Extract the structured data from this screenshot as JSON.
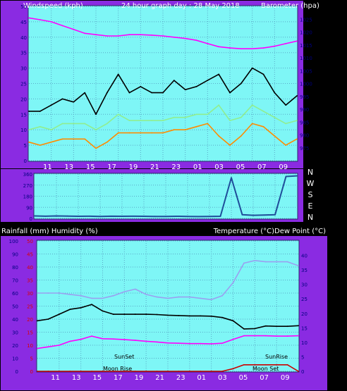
{
  "colors": {
    "page_bg": "#000000",
    "side_bg": "#8a2be2",
    "plot_bg": "#7ef6f6",
    "grid": "#5aaac8",
    "axis_text": "#ffffff",
    "tick_text": "#000080",
    "red_tick_text": "#d80000"
  },
  "top_chart": {
    "header_left": "Windspeed (kph)",
    "header_center": "24 hour graph day : 28 May 2018",
    "header_right": "Barometer (hpa)"
  },
  "direction_chart": {
    "compass_labels": [
      "N",
      "W",
      "S",
      "E",
      "N"
    ]
  },
  "bottom_chart": {
    "header_left": "Rainfall (mm)  Humidity (%)",
    "header_right": "Temperature (°C)Dew Point (°C)",
    "annotations": {
      "sunset": "SunSet",
      "sunrise": "SunRise",
      "moonrise": "Moon Rise",
      "moonset": "Moon Set"
    }
  },
  "chart_data": [
    {
      "type": "line",
      "title": "24 hour graph day : 28 May 2018",
      "xlabel": "",
      "ylabel": "Windspeed (kph)",
      "y2label": "Barometer (hpa)",
      "x_ticks": [
        "11",
        "13",
        "15",
        "17",
        "19",
        "21",
        "23",
        "01",
        "03",
        "05",
        "07",
        "09"
      ],
      "x": [
        0,
        1,
        2,
        3,
        4,
        5,
        6,
        7,
        8,
        9,
        10,
        11,
        12,
        13,
        14,
        15,
        16,
        17,
        18,
        19,
        20,
        21,
        22,
        23,
        24
      ],
      "ylim": [
        0,
        50
      ],
      "y_ticks": [
        "0",
        "5",
        "10",
        "15",
        "20",
        "25",
        "30",
        "35",
        "40",
        "45",
        "50"
      ],
      "y2lim": [
        970,
        1030
      ],
      "y2_ticks": [
        "975",
        "980",
        "985",
        "990",
        "995",
        "1000",
        "1005",
        "1010",
        "1015",
        "1020",
        "1025"
      ],
      "grid": true,
      "series": [
        {
          "values": [
            16,
            16,
            18,
            20,
            19,
            22,
            15,
            22,
            28,
            22,
            24,
            22,
            22,
            26,
            23,
            24,
            26,
            28,
            22,
            25,
            30,
            28,
            22,
            18,
            21
          ],
          "color": "#000000"
        },
        {
          "values": [
            10,
            11,
            10,
            12,
            12,
            12,
            10,
            12,
            15,
            13,
            13,
            13,
            13,
            14,
            14,
            15,
            15,
            18,
            13,
            14,
            18,
            16,
            14,
            12,
            13
          ],
          "color": "#90ee90"
        },
        {
          "values": [
            6,
            5,
            6,
            7,
            7,
            7,
            4,
            6,
            9,
            9,
            9,
            9,
            9,
            10,
            10,
            11,
            12,
            8,
            5,
            8,
            12,
            11,
            8,
            5,
            7
          ],
          "color": "#ff8c00"
        },
        {
          "axis": "right",
          "values": [
            1025.5,
            1024.8,
            1024,
            1022.5,
            1021,
            1019.5,
            1019,
            1018.5,
            1018.5,
            1019,
            1019,
            1018.8,
            1018.5,
            1018,
            1017.5,
            1016.8,
            1015.5,
            1014.3,
            1013.8,
            1013.5,
            1013.5,
            1013.8,
            1014.5,
            1015.5,
            1016.5
          ],
          "color": "#ff00ff"
        }
      ]
    },
    {
      "type": "line",
      "title": "",
      "ylabel": "",
      "x_ticks": [],
      "x": [
        0,
        1,
        2,
        3,
        4,
        5,
        6,
        7,
        8,
        9,
        10,
        11,
        12,
        13,
        14,
        15,
        16,
        17,
        18,
        19,
        20,
        21,
        22,
        23,
        24
      ],
      "ylim": [
        0,
        360
      ],
      "y_ticks": [
        "0",
        "90",
        "180",
        "270",
        "360"
      ],
      "grid": true,
      "series": [
        {
          "values": [
            20,
            18,
            20,
            19,
            17,
            18,
            16,
            18,
            17,
            18,
            17,
            16,
            16,
            17,
            16,
            15,
            16,
            17,
            330,
            30,
            25,
            27,
            30,
            340,
            345
          ],
          "color": "#1f4e9a"
        }
      ]
    },
    {
      "type": "line",
      "title": "",
      "xlabel": "",
      "ylabel": "Rainfall (mm)  Humidity (%)",
      "y2label": "Temperature (°C)Dew Point (°C)",
      "x_ticks": [
        "11",
        "13",
        "15",
        "17",
        "19",
        "21",
        "23",
        "01",
        "03",
        "05",
        "07",
        "09"
      ],
      "x": [
        0,
        1,
        2,
        3,
        4,
        5,
        6,
        7,
        8,
        9,
        10,
        11,
        12,
        13,
        14,
        15,
        16,
        17,
        18,
        19,
        20,
        21,
        22,
        23,
        24
      ],
      "ylim": [
        0,
        100
      ],
      "y_ticks": [
        "0",
        "10",
        "20",
        "30",
        "40",
        "50",
        "60",
        "70",
        "80",
        "90",
        "100"
      ],
      "ylim_red": [
        0,
        50
      ],
      "y_ticks_red": [
        "0",
        "5",
        "10",
        "15",
        "20",
        "25",
        "30",
        "35",
        "40",
        "45",
        "50"
      ],
      "y2lim": [
        0,
        40
      ],
      "y2_ticks": [
        "0",
        "5",
        "10",
        "15",
        "20",
        "25",
        "30",
        "35",
        "40"
      ],
      "grid": true,
      "series": [
        {
          "axis": "left",
          "values": [
            60,
            60,
            60,
            59,
            58,
            56,
            56,
            58,
            61,
            63,
            59,
            57,
            56,
            57,
            57,
            56,
            55,
            58,
            68,
            83,
            85,
            84,
            84,
            84,
            81
          ],
          "color": "#9aa0f0"
        },
        {
          "axis": "left",
          "values": [
            0,
            0,
            0,
            0,
            0,
            0,
            0,
            0,
            0,
            0,
            0,
            0,
            0,
            0,
            0,
            0,
            0,
            0,
            2,
            5,
            5,
            5,
            5,
            5,
            0
          ],
          "color": "#cc0000"
        },
        {
          "axis": "right",
          "values": [
            15.5,
            16,
            17.5,
            19,
            19.5,
            20.5,
            18.5,
            17.5,
            17.5,
            17.5,
            17.5,
            17.4,
            17.2,
            17.1,
            17,
            17,
            16.9,
            16.5,
            15.5,
            13,
            13.1,
            13.9,
            13.8,
            13.8,
            14
          ],
          "color": "#000000"
        },
        {
          "axis": "right",
          "values": [
            7,
            7.5,
            8,
            9.2,
            9.8,
            10.8,
            10,
            9.9,
            9.7,
            9.5,
            9.2,
            9,
            8.7,
            8.6,
            8.5,
            8.5,
            8.4,
            8.6,
            9.8,
            10.9,
            10.9,
            10.9,
            10.8,
            10.8,
            10.9
          ],
          "color": "#ff00ff"
        }
      ]
    }
  ]
}
